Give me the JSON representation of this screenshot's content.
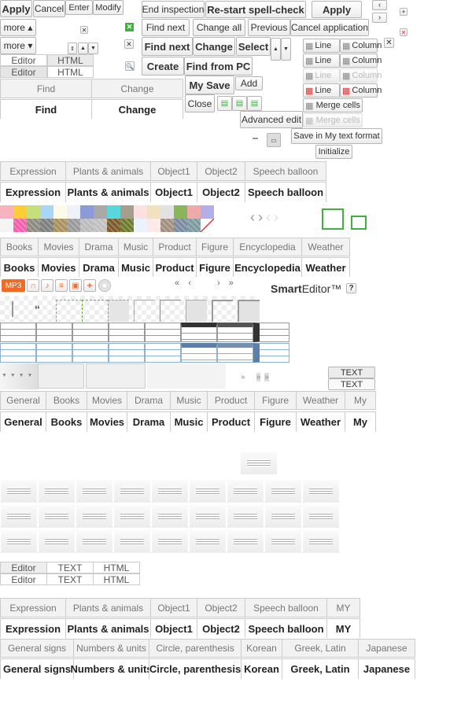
{
  "row1": {
    "apply": "Apply",
    "cancel": "Cancel",
    "enter": "Enter",
    "modify": "Modify",
    "end_inspection": "End inspection",
    "restart_spell": "Re-start spell-check",
    "apply2": "Apply"
  },
  "more_up": "more ▴",
  "more_down": "more ▾",
  "spell": {
    "find_next": "Find next",
    "change_all": "Change all",
    "previous": "Previous",
    "cancel_application": "Cancel application"
  },
  "find_bold": {
    "find_next": "Find next",
    "change": "Change",
    "select": "Select"
  },
  "mode": {
    "editor": "Editor",
    "html": "HTML"
  },
  "create": "Create",
  "find_from_pc": "Find from PC",
  "my_save": "My Save",
  "add": "Add",
  "close": "Close",
  "find_tabs": {
    "find": "Find",
    "change": "Change"
  },
  "table_btns": {
    "line": "Line",
    "column": "Column",
    "merge": "Merge cells"
  },
  "advanced_edit": "Advanced edit",
  "save_my_format": "Save in My text format",
  "initialize": "Initialize",
  "emoticon_tabs": [
    "Expression",
    "Plants & animals",
    "Object1",
    "Object2",
    "Speech balloon"
  ],
  "emoticon_tabs2": [
    "Expression",
    "Plants & animals",
    "Object1",
    "Object2",
    "Speech balloon",
    "MY"
  ],
  "category_tabs": [
    "Books",
    "Movies",
    "Drama",
    "Music",
    "Product",
    "Figure",
    "Encyclopedia",
    "Weather"
  ],
  "category_tabs2": [
    "General",
    "Books",
    "Movies",
    "Drama",
    "Music",
    "Product",
    "Figure",
    "Weather",
    "My"
  ],
  "symbol_tabs": [
    "General signs",
    "Numbers & units",
    "Circle, parenthesis",
    "Korean",
    "Greek, Latin",
    "Japanese"
  ],
  "swatches": [
    "#f7b3bd",
    "#ffcc33",
    "#c5e07a",
    "#a9d6f5",
    "#fdfbe8",
    "#eef3fa",
    "#8b9ad8",
    "#a9a9a9",
    "#5bd6dc",
    "#a59e8c",
    "#fde0e0",
    "#f2e1bd",
    "#e2e2e2",
    "#8bb55a",
    "#eeaaaa",
    "#b4aee6",
    "#f4f4f4",
    "#f25fae",
    "#8f8a80",
    "#7e7e7e",
    "#a8905c",
    "#999",
    "#bbb",
    "#c0c0c0",
    "#7a5a2a",
    "#6d7a2c",
    "#e9f2fb",
    "#fde7e7",
    "#a09080",
    "#7a8aa0",
    "#7d9aa0",
    "#ffffff"
  ],
  "media": {
    "mp3": "MP3"
  },
  "pager": {
    "first": "«",
    "prev": "‹",
    "next": "›",
    "last": "»"
  },
  "logo": {
    "smart": "Smart",
    "editor": "Editor™",
    "help": "?"
  },
  "text_btn": "TEXT",
  "mode3": {
    "editor": "Editor",
    "text": "TEXT",
    "html": "HTML"
  },
  "colors": {
    "accent_orange": "#f06a28",
    "green": "#3cb43c",
    "red": "#e03030"
  }
}
